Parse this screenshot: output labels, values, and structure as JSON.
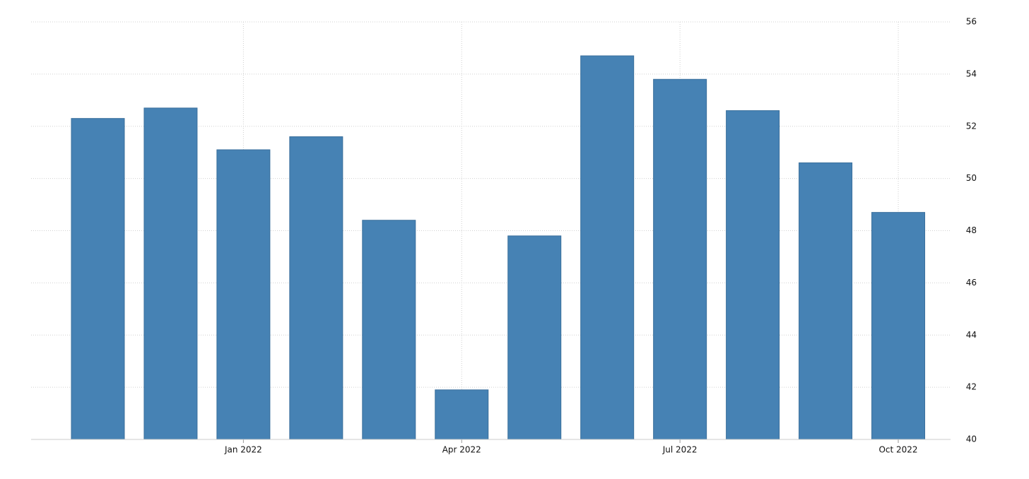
{
  "chart_data": {
    "type": "bar",
    "categories": [
      null,
      null,
      "Jan 2022",
      null,
      null,
      "Apr 2022",
      null,
      null,
      "Jul 2022",
      null,
      null,
      "Oct 2022"
    ],
    "values": [
      52.3,
      52.7,
      51.1,
      51.6,
      48.4,
      41.9,
      47.8,
      54.7,
      53.8,
      52.6,
      50.6,
      48.7
    ],
    "color": "#4682b4",
    "ylim": [
      40,
      56
    ],
    "yticks": [
      40,
      42,
      44,
      46,
      48,
      50,
      52,
      54,
      56
    ],
    "grid": true
  }
}
